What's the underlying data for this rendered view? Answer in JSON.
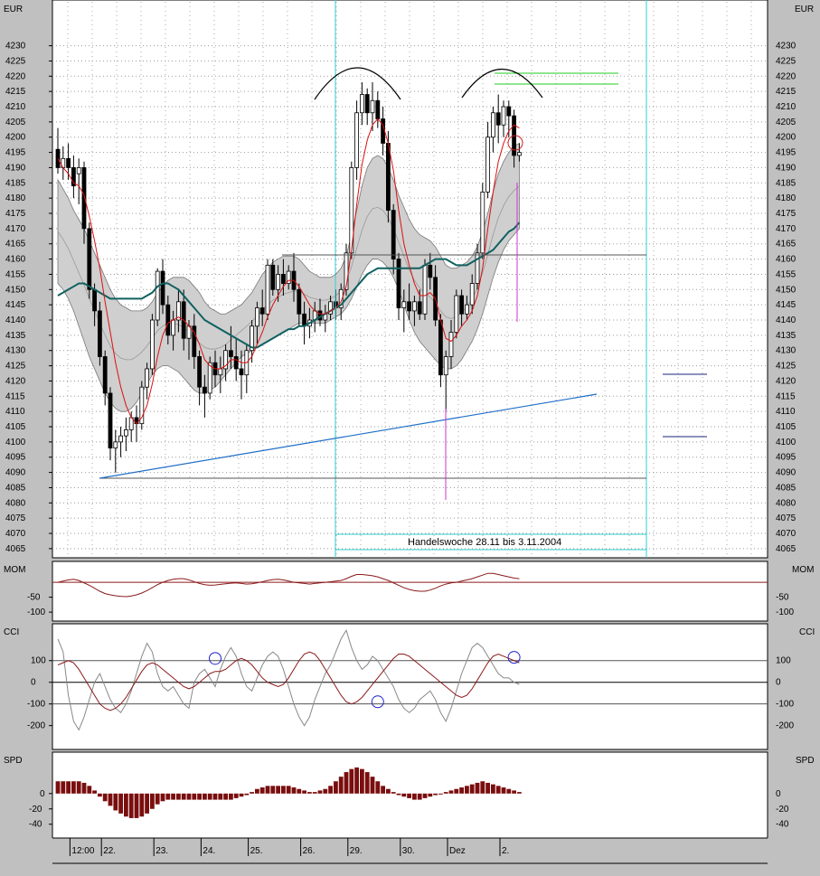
{
  "chart_data": [
    {
      "type": "candlestick",
      "panel": "price",
      "unit": "EUR",
      "ylim": [
        4062,
        4245
      ],
      "yticks": [
        4065,
        4070,
        4075,
        4080,
        4085,
        4090,
        4095,
        4100,
        4105,
        4110,
        4115,
        4120,
        4125,
        4130,
        4135,
        4140,
        4145,
        4150,
        4155,
        4160,
        4165,
        4170,
        4175,
        4180,
        4185,
        4190,
        4195,
        4200,
        4205,
        4210,
        4215,
        4220,
        4225,
        4230
      ],
      "xlabels": [
        "12:00",
        "22.",
        "23.",
        "24.",
        "25.",
        "26.",
        "29.",
        "30.",
        "Dez",
        "2."
      ],
      "xlabel_index": [
        3,
        9,
        19,
        28,
        37,
        47,
        56,
        66,
        75,
        85
      ],
      "n_bars": 96,
      "candles": [
        [
          4196,
          4203,
          4188,
          4190
        ],
        [
          4190,
          4197,
          4186,
          4193
        ],
        [
          4193,
          4198,
          4186,
          4190
        ],
        [
          4190,
          4194,
          4180,
          4184
        ],
        [
          4188,
          4193,
          4178,
          4190
        ],
        [
          4190,
          4192,
          4165,
          4170
        ],
        [
          4170,
          4172,
          4147,
          4150
        ],
        [
          4150,
          4152,
          4138,
          4143
        ],
        [
          4143,
          4146,
          4125,
          4128
        ],
        [
          4128,
          4130,
          4112,
          4116
        ],
        [
          4116,
          4118,
          4094,
          4098
        ],
        [
          4098,
          4104,
          4090,
          4100
        ],
        [
          4100,
          4105,
          4095,
          4102
        ],
        [
          4102,
          4108,
          4097,
          4104
        ],
        [
          4104,
          4110,
          4100,
          4108
        ],
        [
          4108,
          4112,
          4100,
          4106
        ],
        [
          4106,
          4120,
          4104,
          4118
        ],
        [
          4118,
          4126,
          4114,
          4124
        ],
        [
          4124,
          4142,
          4122,
          4140
        ],
        [
          4140,
          4157,
          4138,
          4156
        ],
        [
          4156,
          4160,
          4142,
          4145
        ],
        [
          4145,
          4148,
          4132,
          4135
        ],
        [
          4135,
          4143,
          4130,
          4140
        ],
        [
          4140,
          4150,
          4136,
          4146
        ],
        [
          4146,
          4150,
          4130,
          4134
        ],
        [
          4134,
          4140,
          4127,
          4138
        ],
        [
          4138,
          4142,
          4124,
          4128
        ],
        [
          4128,
          4130,
          4112,
          4118
        ],
        [
          4118,
          4122,
          4108,
          4116
        ],
        [
          4116,
          4128,
          4114,
          4126
        ],
        [
          4126,
          4130,
          4118,
          4122
        ],
        [
          4122,
          4128,
          4116,
          4124
        ],
        [
          4124,
          4132,
          4120,
          4130
        ],
        [
          4130,
          4138,
          4124,
          4128
        ],
        [
          4128,
          4134,
          4120,
          4124
        ],
        [
          4124,
          4130,
          4114,
          4122
        ],
        [
          4122,
          4132,
          4116,
          4130
        ],
        [
          4130,
          4140,
          4126,
          4138
        ],
        [
          4138,
          4146,
          4132,
          4144
        ],
        [
          4144,
          4150,
          4138,
          4142
        ],
        [
          4142,
          4160,
          4140,
          4158
        ],
        [
          4158,
          4160,
          4148,
          4150
        ],
        [
          4150,
          4158,
          4146,
          4155
        ],
        [
          4155,
          4160,
          4148,
          4152
        ],
        [
          4152,
          4158,
          4150,
          4156
        ],
        [
          4156,
          4162,
          4146,
          4150
        ],
        [
          4150,
          4152,
          4138,
          4142
        ],
        [
          4142,
          4146,
          4132,
          4138
        ],
        [
          4138,
          4144,
          4134,
          4140
        ],
        [
          4140,
          4146,
          4136,
          4143
        ],
        [
          4143,
          4147,
          4138,
          4140
        ],
        [
          4140,
          4145,
          4136,
          4142
        ],
        [
          4142,
          4148,
          4140,
          4146
        ],
        [
          4146,
          4150,
          4140,
          4144
        ],
        [
          4144,
          4152,
          4140,
          4150
        ],
        [
          4150,
          4165,
          4148,
          4162
        ],
        [
          4162,
          4192,
          4160,
          4190
        ],
        [
          4190,
          4212,
          4186,
          4208
        ],
        [
          4208,
          4218,
          4204,
          4214
        ],
        [
          4214,
          4216,
          4204,
          4208
        ],
        [
          4208,
          4218,
          4202,
          4212
        ],
        [
          4212,
          4215,
          4203,
          4206
        ],
        [
          4206,
          4210,
          4194,
          4198
        ],
        [
          4198,
          4202,
          4172,
          4176
        ],
        [
          4176,
          4178,
          4155,
          4160
        ],
        [
          4160,
          4162,
          4140,
          4144
        ],
        [
          4144,
          4150,
          4136,
          4146
        ],
        [
          4146,
          4152,
          4140,
          4143
        ],
        [
          4143,
          4148,
          4138,
          4146
        ],
        [
          4146,
          4150,
          4140,
          4142
        ],
        [
          4142,
          4160,
          4140,
          4158
        ],
        [
          4158,
          4162,
          4150,
          4154
        ],
        [
          4154,
          4158,
          4138,
          4140
        ],
        [
          4140,
          4142,
          4118,
          4122
        ],
        [
          4122,
          4130,
          4110,
          4128
        ],
        [
          4128,
          4140,
          4124,
          4136
        ],
        [
          4136,
          4150,
          4134,
          4148
        ],
        [
          4148,
          4150,
          4138,
          4142
        ],
        [
          4142,
          4148,
          4140,
          4145
        ],
        [
          4145,
          4155,
          4142,
          4152
        ],
        [
          4152,
          4165,
          4150,
          4162
        ],
        [
          4162,
          4185,
          4160,
          4182
        ],
        [
          4182,
          4205,
          4180,
          4200
        ],
        [
          4200,
          4210,
          4195,
          4208
        ],
        [
          4208,
          4214,
          4198,
          4204
        ],
        [
          4204,
          4212,
          4200,
          4210
        ],
        [
          4210,
          4212,
          4200,
          4207
        ],
        [
          4207,
          4209,
          4190,
          4194
        ],
        [
          4194,
          4198,
          4192,
          4195
        ]
      ],
      "ma_red_start_index": 0,
      "ma_red": [
        4193,
        4190,
        4188,
        4185,
        4184,
        4181,
        4174,
        4166,
        4157,
        4146,
        4136,
        4126,
        4118,
        4112,
        4108,
        4106,
        4108,
        4112,
        4119,
        4128,
        4135,
        4139,
        4140,
        4141,
        4140,
        4138,
        4136,
        4132,
        4127,
        4125,
        4124,
        4124,
        4125,
        4127,
        4127,
        4126,
        4126,
        4128,
        4132,
        4136,
        4141,
        4145,
        4148,
        4151,
        4153,
        4153,
        4151,
        4148,
        4145,
        4143,
        4142,
        4142,
        4143,
        4144,
        4146,
        4151,
        4163,
        4178,
        4191,
        4199,
        4204,
        4206,
        4204,
        4198,
        4189,
        4176,
        4165,
        4158,
        4152,
        4148,
        4148,
        4149,
        4147,
        4140,
        4134,
        4133,
        4135,
        4138,
        4140,
        4143,
        4148,
        4157,
        4170,
        4182,
        4192,
        4198,
        4202,
        4204,
        4203
      ],
      "band_upper": [
        4186,
        4183,
        4180,
        4176,
        4173,
        4170,
        4166,
        4162,
        4158,
        4154,
        4150,
        4147,
        4145,
        4144,
        4143,
        4143,
        4143,
        4144,
        4146,
        4149,
        4151,
        4153,
        4154,
        4154,
        4154,
        4153,
        4151,
        4149,
        4146,
        4144,
        4143,
        4142,
        4142,
        4143,
        4144,
        4145,
        4147,
        4149,
        4152,
        4155,
        4157,
        4159,
        4160,
        4161,
        4161,
        4161,
        4160,
        4158,
        4156,
        4155,
        4154,
        4154,
        4154,
        4155,
        4157,
        4161,
        4168,
        4176,
        4184,
        4190,
        4193,
        4194,
        4193,
        4190,
        4186,
        4181,
        4177,
        4173,
        4170,
        4168,
        4167,
        4166,
        4164,
        4161,
        4158,
        4157,
        4157,
        4158,
        4159,
        4161,
        4164,
        4169,
        4175,
        4182,
        4188,
        4192,
        4195,
        4197,
        4198
      ],
      "band_lower": [
        4152,
        4150,
        4147,
        4143,
        4138,
        4133,
        4128,
        4124,
        4120,
        4116,
        4113,
        4111,
        4110,
        4110,
        4111,
        4113,
        4116,
        4119,
        4122,
        4124,
        4125,
        4125,
        4124,
        4123,
        4121,
        4119,
        4117,
        4116,
        4116,
        4117,
        4118,
        4120,
        4122,
        4124,
        4126,
        4128,
        4129,
        4130,
        4131,
        4132,
        4133,
        4134,
        4135,
        4136,
        4137,
        4138,
        4139,
        4139,
        4139,
        4139,
        4139,
        4139,
        4140,
        4141,
        4142,
        4144,
        4147,
        4151,
        4155,
        4158,
        4160,
        4160,
        4159,
        4157,
        4154,
        4150,
        4145,
        4140,
        4136,
        4133,
        4131,
        4129,
        4127,
        4125,
        4124,
        4124,
        4125,
        4127,
        4130,
        4133,
        4137,
        4142,
        4148,
        4154,
        4159,
        4163,
        4166,
        4168,
        4170
      ],
      "ma_green": [
        4148,
        4149,
        4150,
        4151,
        4152,
        4152,
        4151,
        4150,
        4149,
        4148,
        4147,
        4147,
        4147,
        4147,
        4147,
        4147,
        4147,
        4148,
        4149,
        4151,
        4152,
        4152,
        4151,
        4150,
        4148,
        4146,
        4144,
        4142,
        4140,
        4139,
        4138,
        4137,
        4136,
        4135,
        4134,
        4133,
        4132,
        4131,
        4131,
        4132,
        4133,
        4134,
        4135,
        4136,
        4137,
        4137,
        4138,
        4138,
        4139,
        4140,
        4141,
        4142,
        4143,
        4144,
        4145,
        4147,
        4149,
        4151,
        4153,
        4155,
        4156,
        4157,
        4157,
        4157,
        4157,
        4157,
        4157,
        4157,
        4157,
        4157,
        4158,
        4159,
        4160,
        4160,
        4160,
        4159,
        4158,
        4158,
        4158,
        4159,
        4160,
        4161,
        4162,
        4163,
        4165,
        4167,
        4169,
        4170,
        4172
      ],
      "annotations": {
        "week_label": "Handelswoche 28.11 bis 3.11.2004"
      }
    },
    {
      "type": "line",
      "panel": "MOM",
      "yticks": [
        -50,
        -100
      ],
      "ylim": [
        -130,
        70
      ],
      "zero_line": 0,
      "values": [
        0,
        4,
        8,
        10,
        6,
        -2,
        -10,
        -20,
        -30,
        -38,
        -42,
        -45,
        -47,
        -48,
        -46,
        -42,
        -36,
        -28,
        -18,
        -8,
        0,
        6,
        10,
        12,
        12,
        8,
        2,
        -4,
        -8,
        -10,
        -9,
        -7,
        -5,
        -3,
        -2,
        -4,
        -6,
        -5,
        -2,
        2,
        6,
        9,
        10,
        8,
        4,
        0,
        -2,
        -4,
        -6,
        -4,
        -2,
        0,
        2,
        4,
        6,
        12,
        20,
        26,
        26,
        24,
        22,
        18,
        12,
        6,
        -2,
        -10,
        -18,
        -24,
        -28,
        -30,
        -30,
        -26,
        -20,
        -12,
        -6,
        -2,
        0,
        4,
        8,
        12,
        18,
        24,
        30,
        30,
        26,
        22,
        18,
        14,
        12
      ]
    },
    {
      "type": "line",
      "panel": "CCI",
      "yticks": [
        100,
        0,
        -100,
        -200
      ],
      "ylim": [
        -310,
        270
      ],
      "series": [
        {
          "values": [
            200,
            140,
            -60,
            -180,
            -220,
            -160,
            -80,
            0,
            40,
            -20,
            -80,
            -120,
            -140,
            -100,
            -40,
            40,
            120,
            180,
            140,
            40,
            -20,
            -40,
            -20,
            -60,
            -100,
            -120,
            0,
            40,
            60,
            20,
            -20,
            60,
            120,
            160,
            120,
            40,
            -20,
            -40,
            20,
            80,
            120,
            140,
            120,
            60,
            -20,
            -100,
            -160,
            -200,
            -160,
            -80,
            -20,
            40,
            80,
            140,
            200,
            240,
            160,
            100,
            60,
            80,
            120,
            100,
            60,
            20,
            -20,
            -80,
            -120,
            -140,
            -120,
            -80,
            -60,
            -40,
            -80,
            -140,
            -180,
            -120,
            -40,
            40,
            100,
            160,
            180,
            160,
            120,
            80,
            40,
            20,
            20,
            0,
            -10
          ]
        },
        {
          "values": [
            80,
            90,
            100,
            90,
            60,
            20,
            -20,
            -60,
            -100,
            -120,
            -130,
            -120,
            -100,
            -70,
            -30,
            10,
            50,
            80,
            90,
            80,
            60,
            40,
            20,
            0,
            -20,
            -30,
            -20,
            0,
            20,
            40,
            50,
            50,
            60,
            80,
            100,
            110,
            100,
            80,
            50,
            20,
            0,
            -10,
            -20,
            -10,
            20,
            60,
            100,
            130,
            140,
            130,
            100,
            60,
            20,
            -20,
            -60,
            -90,
            -100,
            -90,
            -70,
            -40,
            -10,
            20,
            50,
            80,
            110,
            130,
            130,
            120,
            100,
            80,
            60,
            40,
            20,
            0,
            -20,
            -40,
            -60,
            -70,
            -60,
            -30,
            10,
            50,
            90,
            120,
            130,
            120,
            110,
            100,
            90
          ]
        }
      ],
      "circles": [
        {
          "x": 30,
          "y": 110
        },
        {
          "x": 61,
          "y": -90
        },
        {
          "x": 87,
          "y": 115
        }
      ]
    },
    {
      "type": "bar",
      "panel": "SPD",
      "yticks": [
        0,
        -20,
        -40
      ],
      "ylim": [
        -58,
        54
      ],
      "values": [
        16,
        16,
        16,
        16,
        16,
        14,
        10,
        4,
        -4,
        -10,
        -16,
        -22,
        -26,
        -30,
        -32,
        -32,
        -30,
        -26,
        -20,
        -14,
        -10,
        -8,
        -8,
        -8,
        -8,
        -8,
        -8,
        -8,
        -8,
        -8,
        -8,
        -8,
        -8,
        -8,
        -6,
        -4,
        -2,
        2,
        6,
        8,
        10,
        10,
        10,
        10,
        10,
        8,
        6,
        4,
        2,
        2,
        4,
        6,
        10,
        16,
        22,
        28,
        32,
        34,
        32,
        28,
        22,
        16,
        10,
        6,
        2,
        -2,
        -4,
        -6,
        -8,
        -8,
        -6,
        -4,
        -2,
        0,
        2,
        4,
        6,
        8,
        10,
        12,
        14,
        16,
        14,
        12,
        10,
        8,
        6,
        4,
        2
      ]
    }
  ],
  "panels": {
    "price_label": "EUR",
    "mom_label": "MOM",
    "cci_label": "CCI",
    "spd_label": "SPD"
  }
}
